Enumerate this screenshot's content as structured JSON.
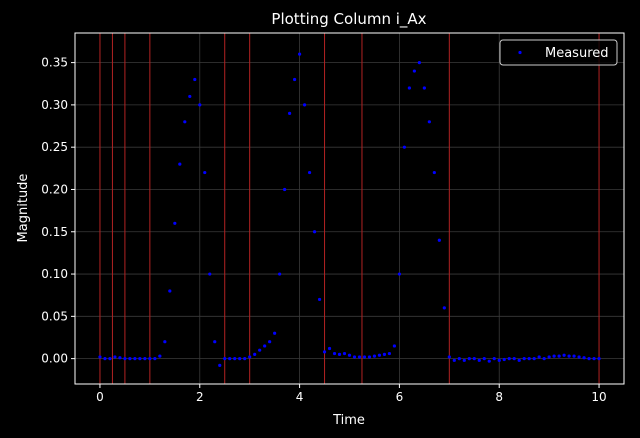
{
  "chart_data": {
    "type": "scatter",
    "title": "Plotting Column i_Ax",
    "xlabel": "Time",
    "ylabel": "Magnitude",
    "xlim": [
      -0.5,
      10.5
    ],
    "ylim": [
      -0.03,
      0.385
    ],
    "x_ticks": [
      0,
      2,
      4,
      6,
      8,
      10
    ],
    "x_tick_labels": [
      "0",
      "2",
      "4",
      "6",
      "8",
      "10"
    ],
    "y_ticks": [
      0.0,
      0.05,
      0.1,
      0.15,
      0.2,
      0.25,
      0.3,
      0.35
    ],
    "y_tick_labels": [
      "0.00",
      "0.05",
      "0.10",
      "0.15",
      "0.20",
      "0.25",
      "0.30",
      "0.35"
    ],
    "grid": true,
    "legend_position": "top-right",
    "background_color": "#000000",
    "marker_color": "#0000ff",
    "vline_color": "#b22222",
    "vlines": [
      0,
      0.25,
      0.5,
      1.0,
      2.5,
      3.0,
      4.5,
      5.25,
      7.0,
      10.0
    ],
    "series": [
      {
        "name": "Measured",
        "x": [
          0.0,
          0.1,
          0.2,
          0.3,
          0.4,
          0.5,
          0.6,
          0.7,
          0.8,
          0.9,
          1.0,
          1.1,
          1.2,
          1.3,
          1.4,
          1.5,
          1.6,
          1.7,
          1.8,
          1.9,
          2.0,
          2.1,
          2.2,
          2.3,
          2.4,
          2.5,
          2.6,
          2.7,
          2.8,
          2.9,
          3.0,
          3.1,
          3.2,
          3.3,
          3.4,
          3.5,
          3.6,
          3.7,
          3.8,
          3.9,
          4.0,
          4.1,
          4.2,
          4.3,
          4.4,
          4.5,
          4.6,
          4.7,
          4.8,
          4.9,
          5.0,
          5.1,
          5.2,
          5.3,
          5.4,
          5.5,
          5.6,
          5.7,
          5.8,
          5.9,
          6.0,
          6.1,
          6.2,
          6.3,
          6.4,
          6.5,
          6.6,
          6.7,
          6.8,
          6.9,
          7.0,
          7.1,
          7.2,
          7.3,
          7.4,
          7.5,
          7.6,
          7.7,
          7.8,
          7.9,
          8.0,
          8.1,
          8.2,
          8.3,
          8.4,
          8.5,
          8.6,
          8.7,
          8.8,
          8.9,
          9.0,
          9.1,
          9.2,
          9.3,
          9.4,
          9.5,
          9.6,
          9.7,
          9.8,
          9.9,
          10.0
        ],
        "y": [
          0.002,
          0.0,
          0.0,
          0.002,
          0.001,
          0.0,
          0.0,
          0.0,
          0.0,
          0.0,
          0.0,
          0.0,
          0.003,
          0.02,
          0.08,
          0.16,
          0.23,
          0.28,
          0.31,
          0.33,
          0.3,
          0.22,
          0.1,
          0.02,
          -0.008,
          0.0,
          0.0,
          0.0,
          0.0,
          0.0,
          0.002,
          0.005,
          0.01,
          0.015,
          0.02,
          0.03,
          0.1,
          0.2,
          0.29,
          0.33,
          0.36,
          0.3,
          0.22,
          0.15,
          0.07,
          0.008,
          0.012,
          0.006,
          0.005,
          0.006,
          0.004,
          0.002,
          0.002,
          0.002,
          0.002,
          0.003,
          0.004,
          0.005,
          0.006,
          0.015,
          0.1,
          0.25,
          0.32,
          0.34,
          0.35,
          0.32,
          0.28,
          0.22,
          0.14,
          0.06,
          0.002,
          -0.002,
          0.0,
          -0.002,
          0.0,
          0.0,
          -0.002,
          0.0,
          -0.003,
          0.0,
          -0.002,
          -0.001,
          0.0,
          0.0,
          -0.002,
          0.0,
          0.0,
          0.0,
          0.002,
          0.0,
          0.002,
          0.003,
          0.003,
          0.004,
          0.003,
          0.003,
          0.002,
          0.001,
          0.0,
          0.0,
          0.0
        ]
      }
    ]
  }
}
